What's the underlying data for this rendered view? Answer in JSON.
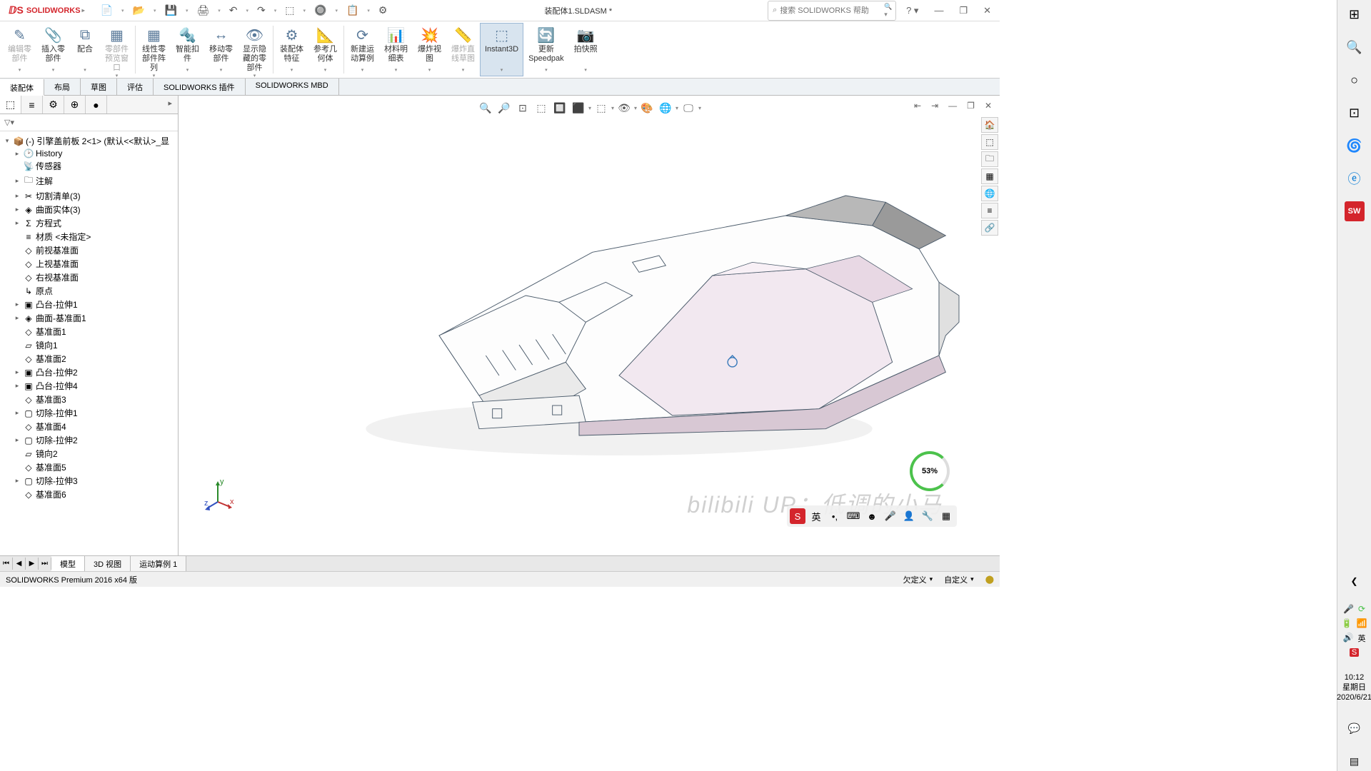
{
  "app": {
    "logo_text": "SOLIDWORKS",
    "doc_title": "装配体1.SLDASM *",
    "search_placeholder": "搜索 SOLIDWORKS 帮助",
    "status_text": "SOLIDWORKS Premium 2016 x64 版",
    "status_defined": "欠定义",
    "status_custom": "自定义"
  },
  "qa": [
    "📄",
    "📂",
    "💾",
    "🖨",
    "↶",
    "↷",
    "⬚",
    "🔘",
    "📋",
    "⚙"
  ],
  "ribbon": [
    {
      "icon": "✎",
      "label": "编辑零\n部件",
      "disabled": true
    },
    {
      "icon": "📎",
      "label": "插入零\n部件"
    },
    {
      "icon": "⧉",
      "label": "配合"
    },
    {
      "icon": "▦",
      "label": "零部件\n预览窗\n口",
      "disabled": true
    },
    {
      "sep": true
    },
    {
      "icon": "▦",
      "label": "线性零\n部件阵\n列"
    },
    {
      "icon": "🔩",
      "label": "智能扣\n件"
    },
    {
      "icon": "↔",
      "label": "移动零\n部件"
    },
    {
      "icon": "👁",
      "label": "显示隐\n藏的零\n部件"
    },
    {
      "sep": true
    },
    {
      "icon": "⚙",
      "label": "装配体\n特征"
    },
    {
      "icon": "📐",
      "label": "参考几\n何体"
    },
    {
      "sep": true
    },
    {
      "icon": "⟳",
      "label": "新建运\n动算例"
    },
    {
      "icon": "📊",
      "label": "材料明\n细表"
    },
    {
      "icon": "💥",
      "label": "爆炸视\n图"
    },
    {
      "icon": "📏",
      "label": "爆炸直\n线草图",
      "disabled": true
    },
    {
      "icon": "⬚",
      "label": "Instant3D",
      "active": true
    },
    {
      "icon": "🔄",
      "label": "更新\nSpeedpak"
    },
    {
      "icon": "📷",
      "label": "拍快照"
    }
  ],
  "cmd_tabs": [
    {
      "label": "装配体",
      "active": true
    },
    {
      "label": "布局"
    },
    {
      "label": "草图"
    },
    {
      "label": "评估"
    },
    {
      "label": "SOLIDWORKS 插件"
    },
    {
      "label": "SOLIDWORKS MBD"
    }
  ],
  "fp_tabs": [
    "⬚",
    "≡",
    "⚙",
    "⊕",
    "●"
  ],
  "tree": [
    {
      "d": 0,
      "exp": "▾",
      "icon": "📦",
      "label": "(-) 引擎盖前板 2<1> (默认<<默认>_显",
      "c": "#333"
    },
    {
      "d": 1,
      "exp": "▸",
      "icon": "🕑",
      "label": "History"
    },
    {
      "d": 1,
      "exp": "",
      "icon": "📡",
      "label": "传感器"
    },
    {
      "d": 1,
      "exp": "▸",
      "icon": "🗀",
      "label": "注解"
    },
    {
      "d": 1,
      "exp": "▸",
      "icon": "✂",
      "label": "切割清单(3)"
    },
    {
      "d": 1,
      "exp": "▸",
      "icon": "◈",
      "label": "曲面实体(3)"
    },
    {
      "d": 1,
      "exp": "▸",
      "icon": "Σ",
      "label": "方程式"
    },
    {
      "d": 1,
      "exp": "",
      "icon": "≡",
      "label": "材质 <未指定>"
    },
    {
      "d": 1,
      "exp": "",
      "icon": "◇",
      "label": "前视基准面"
    },
    {
      "d": 1,
      "exp": "",
      "icon": "◇",
      "label": "上视基准面"
    },
    {
      "d": 1,
      "exp": "",
      "icon": "◇",
      "label": "右视基准面"
    },
    {
      "d": 1,
      "exp": "",
      "icon": "↳",
      "label": "原点"
    },
    {
      "d": 1,
      "exp": "▸",
      "icon": "▣",
      "label": "凸台-拉伸1"
    },
    {
      "d": 1,
      "exp": "▸",
      "icon": "◈",
      "label": "曲面-基准面1"
    },
    {
      "d": 1,
      "exp": "",
      "icon": "◇",
      "label": "基准面1"
    },
    {
      "d": 1,
      "exp": "",
      "icon": "▱",
      "label": "镜向1"
    },
    {
      "d": 1,
      "exp": "",
      "icon": "◇",
      "label": "基准面2"
    },
    {
      "d": 1,
      "exp": "▸",
      "icon": "▣",
      "label": "凸台-拉伸2"
    },
    {
      "d": 1,
      "exp": "▸",
      "icon": "▣",
      "label": "凸台-拉伸4"
    },
    {
      "d": 1,
      "exp": "",
      "icon": "◇",
      "label": "基准面3"
    },
    {
      "d": 1,
      "exp": "▸",
      "icon": "▢",
      "label": "切除-拉伸1"
    },
    {
      "d": 1,
      "exp": "",
      "icon": "◇",
      "label": "基准面4"
    },
    {
      "d": 1,
      "exp": "▸",
      "icon": "▢",
      "label": "切除-拉伸2"
    },
    {
      "d": 1,
      "exp": "",
      "icon": "▱",
      "label": "镜向2"
    },
    {
      "d": 1,
      "exp": "",
      "icon": "◇",
      "label": "基准面5"
    },
    {
      "d": 1,
      "exp": "▸",
      "icon": "▢",
      "label": "切除-拉伸3"
    },
    {
      "d": 1,
      "exp": "",
      "icon": "◇",
      "label": "基准面6"
    }
  ],
  "view_toolbar": [
    "🔍",
    "🔎",
    "⊡",
    "⬚",
    "🔲",
    "⬛",
    "▾",
    "⬚",
    "▾",
    "👁",
    "▾",
    "🎨",
    "🌐",
    "▾",
    "🖵",
    "▾"
  ],
  "bottom_tabs": [
    {
      "label": "模型",
      "active": true
    },
    {
      "label": "3D 视图"
    },
    {
      "label": "运动算例 1"
    }
  ],
  "taskpane": [
    "🏠",
    "⬚",
    "🗀",
    "▦",
    "🌐",
    "≡",
    "🔗"
  ],
  "win_taskbar": {
    "icons_top": [
      "⊞",
      "🔍",
      "○",
      "⊡",
      "🌀",
      "ⓔ"
    ],
    "sw_icon": "SW",
    "icons_bottom": [
      "◀",
      "🎤",
      "🔋",
      "📶",
      "🔊",
      "英"
    ],
    "time": "10:12",
    "day": "星期日",
    "date": "2020/6/21"
  },
  "battery": "53%",
  "watermark": "bilibili  UP：低调的小马",
  "colors": {
    "model_fill": "#f2e8f0",
    "model_line": "#4a5a6a",
    "model_light": "#fdfdfd",
    "model_shade": "#b8b8b8"
  }
}
